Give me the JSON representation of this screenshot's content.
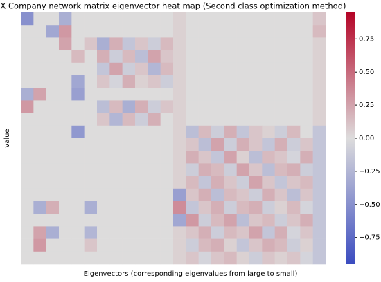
{
  "chart_data": {
    "type": "heatmap",
    "title": "X Company network matrix eigenvector heat map (Second class optimization method)",
    "x_label": "Eigenvectors (corresponding eigenvalues from large to small)",
    "y_label": "value",
    "colormap": [
      "#3b4cc0",
      "#dddcdc",
      "#b40426"
    ],
    "clim": [
      -0.95,
      0.95
    ],
    "cticks": [
      {
        "value": -0.75,
        "label": "−0.75"
      },
      {
        "value": -0.5,
        "label": "−0.50"
      },
      {
        "value": -0.25,
        "label": "−0.25"
      },
      {
        "value": 0,
        "label": "0.00"
      },
      {
        "value": 0.25,
        "label": "0.25"
      },
      {
        "value": 0.5,
        "label": "0.50"
      },
      {
        "value": 0.75,
        "label": "0.75"
      }
    ],
    "z": [
      [
        -0.5,
        0,
        0,
        -0.3,
        0,
        0,
        0,
        0,
        0,
        0,
        0,
        0,
        0.05,
        0,
        0,
        0,
        0,
        0,
        0,
        0,
        0,
        0,
        0,
        0.1
      ],
      [
        0,
        0,
        -0.35,
        0.3,
        0,
        0,
        0,
        0,
        0,
        0,
        0,
        0,
        0.05,
        0,
        0,
        0,
        0,
        0,
        0,
        0,
        0,
        0,
        0,
        0.15
      ],
      [
        0,
        0,
        0,
        0.25,
        0,
        0.1,
        -0.3,
        0.2,
        -0.15,
        0.1,
        -0.1,
        0.15,
        0.05,
        0,
        0,
        0,
        0,
        0,
        0,
        0,
        0,
        0,
        0,
        0.05
      ],
      [
        0,
        0,
        0,
        0,
        0.15,
        0,
        0.2,
        -0.1,
        0.15,
        -0.2,
        0.25,
        0.1,
        0.05,
        0,
        0,
        0,
        0,
        0,
        0,
        0,
        0,
        0,
        0,
        0.05
      ],
      [
        0,
        0,
        0,
        0,
        0,
        0,
        -0.15,
        0.25,
        -0.1,
        0.1,
        -0.25,
        0.15,
        0.05,
        0,
        0,
        0,
        0,
        0,
        0,
        0,
        0,
        0,
        0,
        0.05
      ],
      [
        0,
        0,
        0,
        0,
        -0.35,
        0,
        0.1,
        -0.05,
        0.2,
        0.05,
        0.1,
        -0.1,
        0.05,
        0,
        0,
        0,
        0,
        0,
        0,
        0,
        0,
        0,
        0,
        0.05
      ],
      [
        -0.3,
        0.25,
        0,
        0,
        -0.4,
        0,
        0,
        0,
        0,
        0,
        0,
        0,
        0.05,
        0,
        0,
        0,
        0,
        0,
        0,
        0,
        0,
        0,
        0,
        0.05
      ],
      [
        0.3,
        0,
        0,
        0,
        0,
        0,
        -0.2,
        0.15,
        -0.3,
        0.2,
        -0.1,
        0.1,
        0.05,
        0,
        0,
        0,
        0,
        0,
        0,
        0,
        0,
        0,
        0,
        0.05
      ],
      [
        0,
        0,
        0,
        0,
        0,
        0,
        0.1,
        -0.25,
        0.15,
        -0.1,
        0.2,
        0,
        0.05,
        0,
        0,
        0,
        0,
        0,
        0,
        0,
        0,
        0,
        0,
        0.05
      ],
      [
        0,
        0,
        0,
        0,
        -0.45,
        0,
        0,
        0,
        0,
        0,
        0,
        0,
        0.05,
        -0.2,
        0.15,
        -0.1,
        0.2,
        -0.15,
        0.1,
        0.05,
        -0.1,
        0.15,
        0,
        -0.15
      ],
      [
        0,
        0,
        0,
        0,
        0,
        0,
        0,
        0,
        0,
        0,
        0,
        0,
        0.05,
        0.1,
        -0.2,
        0.25,
        -0.1,
        0.2,
        0.1,
        -0.15,
        0.2,
        -0.1,
        0.1,
        -0.15
      ],
      [
        0,
        0,
        0,
        0,
        0,
        0,
        0,
        0,
        0,
        0,
        0,
        0,
        0.05,
        0.2,
        0.1,
        -0.15,
        0.25,
        0.05,
        -0.2,
        0.15,
        0.1,
        -0.05,
        0.2,
        -0.15
      ],
      [
        0,
        0,
        0,
        0,
        0,
        0,
        0,
        0,
        0,
        0,
        0,
        0,
        0.05,
        -0.1,
        0.2,
        0.15,
        -0.1,
        0.25,
        0.1,
        -0.2,
        0.15,
        0.2,
        -0.1,
        -0.15
      ],
      [
        0,
        0,
        0,
        0,
        0,
        0,
        0,
        0,
        0,
        0,
        0,
        0,
        0.05,
        0.15,
        -0.15,
        0.2,
        0.1,
        -0.1,
        0.25,
        0.1,
        -0.15,
        0.1,
        0.15,
        -0.15
      ],
      [
        0,
        0,
        0,
        0,
        0,
        0,
        0,
        0,
        0,
        0,
        0,
        0,
        -0.4,
        0.1,
        0.2,
        -0.2,
        0.15,
        0.1,
        -0.1,
        0.2,
        0.1,
        -0.2,
        0.1,
        -0.15
      ],
      [
        0,
        -0.3,
        0.2,
        0,
        0,
        -0.3,
        0,
        0,
        0,
        0,
        0,
        0,
        0.35,
        -0.15,
        0.1,
        0.2,
        -0.1,
        0.15,
        0.2,
        -0.1,
        0.05,
        0.15,
        -0.05,
        -0.15
      ],
      [
        0,
        0,
        0,
        0,
        0,
        0,
        0,
        0,
        0,
        0,
        0,
        0,
        -0.35,
        0.3,
        -0.1,
        0.15,
        0.25,
        -0.2,
        0.1,
        0.15,
        -0.1,
        0.1,
        0.2,
        -0.15
      ],
      [
        0,
        0.25,
        -0.3,
        0,
        0,
        -0.25,
        0,
        0,
        0,
        0,
        0,
        0,
        0.05,
        0.1,
        0.2,
        -0.1,
        0.15,
        0.1,
        0.25,
        -0.15,
        0.2,
        -0.05,
        0.1,
        -0.15
      ],
      [
        0,
        0.3,
        0,
        0,
        0,
        0.1,
        0,
        0,
        0,
        0,
        0,
        0,
        0.05,
        -0.1,
        0.15,
        0.2,
        0.05,
        -0.15,
        0.1,
        0.2,
        0.15,
        -0.1,
        0.05,
        -0.15
      ],
      [
        0,
        0,
        0,
        0,
        0,
        0,
        0,
        0,
        0,
        0,
        0,
        0,
        0.05,
        0.1,
        -0.05,
        0.1,
        0.15,
        0.05,
        -0.1,
        0.1,
        0.05,
        0.1,
        -0.05,
        -0.15
      ]
    ]
  }
}
